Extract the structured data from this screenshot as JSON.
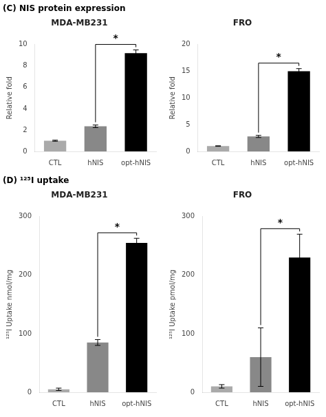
{
  "chart_data": [
    {
      "type": "bar",
      "subtitle": "(C) NIS protein expression",
      "title": "MDA-MB231",
      "categories": [
        "CTL",
        "hNIS",
        "opt-hNIS"
      ],
      "values": [
        1.0,
        2.35,
        9.2
      ],
      "errors": [
        0.05,
        0.12,
        0.3
      ],
      "colors": [
        "#aaaaaa",
        "#888888",
        "#000000"
      ],
      "ylim": [
        0,
        10
      ],
      "yticks": [
        0,
        2,
        4,
        6,
        8,
        10
      ],
      "y_label": "Relative fold",
      "annotations": [
        "*"
      ],
      "grid": false
    },
    {
      "type": "bar",
      "title": "FRO",
      "categories": [
        "CTL",
        "hNIS",
        "opt-hNIS"
      ],
      "values": [
        1.0,
        2.8,
        15.0
      ],
      "errors": [
        0.05,
        0.2,
        0.5
      ],
      "colors": [
        "#aaaaaa",
        "#888888",
        "#000000"
      ],
      "ylim": [
        0,
        20
      ],
      "yticks": [
        0,
        5,
        10,
        15,
        20
      ],
      "y_label": "Relative fold",
      "annotations": [
        "*"
      ],
      "grid": false
    },
    {
      "type": "bar",
      "subtitle": "(D) ¹²⁵I uptake",
      "title": "MDA-MB231",
      "categories": [
        "CTL",
        "hNIS",
        "opt-hNIS"
      ],
      "values": [
        5.0,
        85.0,
        255.0
      ],
      "errors": [
        2.0,
        5.0,
        8.0
      ],
      "colors": [
        "#aaaaaa",
        "#888888",
        "#000000"
      ],
      "ylim": [
        0,
        300
      ],
      "yticks": [
        0,
        100,
        200,
        300
      ],
      "y_label": "¹²⁵I Uptake nmol/mg",
      "annotations": [
        "*"
      ],
      "grid": false
    },
    {
      "type": "bar",
      "title": "FRO",
      "categories": [
        "CTL",
        "hNIS",
        "opt-hNIS"
      ],
      "values": [
        10.0,
        60.0,
        230.0
      ],
      "errors": [
        3.0,
        50.0,
        40.0
      ],
      "colors": [
        "#aaaaaa",
        "#888888",
        "#000000"
      ],
      "ylim": [
        0,
        300
      ],
      "yticks": [
        0,
        100,
        200,
        300
      ],
      "y_label": "¹²⁵I Uptake pmol/mg",
      "annotations": [
        "*"
      ],
      "grid": false
    }
  ]
}
